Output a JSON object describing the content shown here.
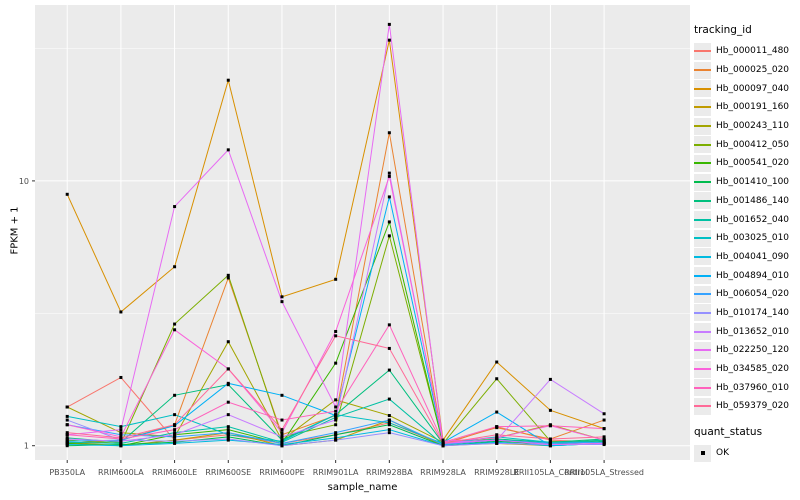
{
  "chart_data": {
    "type": "line",
    "title": "",
    "xlabel": "sample_name",
    "ylabel": "FPKM + 1",
    "yscale": "log10",
    "ylim": [
      0.88,
      46
    ],
    "y_major_ticks": [
      1,
      10
    ],
    "y_minor_ticks": [
      3.162,
      31.62
    ],
    "grid": "on",
    "legend_position": "right",
    "point_shape": "black-square",
    "x_categories": [
      "PB350LA",
      "RRIM600LA",
      "RRIM600LE",
      "RRIM600SE",
      "RRIM600PE",
      "RRIM901LA",
      "RRIM928BA",
      "RRIM928LA",
      "RRIM928LE",
      "RRII105LA_Control",
      "RRII105LA_Stressed"
    ],
    "series": [
      {
        "name": "Hb_000011_480",
        "color": "#F8766D",
        "values": [
          1.4,
          1.81,
          1.05,
          1.1,
          1.02,
          1.1,
          1.22,
          1.01,
          1.18,
          1.05,
          1.03
        ]
      },
      {
        "name": "Hb_000025_020",
        "color": "#EA8331",
        "values": [
          1.02,
          1.05,
          1.2,
          4.3,
          1.1,
          1.3,
          15.2,
          1.02,
          1.17,
          1.06,
          1.25
        ]
      },
      {
        "name": "Hb_000097_040",
        "color": "#D89000",
        "values": [
          8.9,
          3.2,
          4.74,
          24.0,
          3.65,
          4.25,
          34.0,
          1.05,
          2.07,
          1.36,
          1.16
        ]
      },
      {
        "name": "Hb_000191_160",
        "color": "#C09B00",
        "values": [
          1.03,
          1.0,
          1.05,
          1.12,
          1.0,
          1.05,
          1.25,
          1.0,
          1.02,
          1.0,
          1.02
        ]
      },
      {
        "name": "Hb_000243_110",
        "color": "#A3A500",
        "values": [
          1.4,
          1.12,
          1.08,
          2.47,
          1.05,
          1.49,
          1.3,
          1.03,
          1.07,
          1.2,
          1.05
        ]
      },
      {
        "name": "Hb_000412_050",
        "color": "#7CAE00",
        "values": [
          1.05,
          1.02,
          2.88,
          4.4,
          1.08,
          1.2,
          6.2,
          1.02,
          1.79,
          1.04,
          1.02
        ]
      },
      {
        "name": "Hb_000541_020",
        "color": "#39B600",
        "values": [
          1.02,
          1.0,
          1.1,
          1.15,
          1.02,
          2.05,
          7.0,
          1.01,
          1.05,
          1.02,
          1.05
        ]
      },
      {
        "name": "Hb_001410_100",
        "color": "#00BB4E",
        "values": [
          1.0,
          1.01,
          1.03,
          1.08,
          1.0,
          1.1,
          1.2,
          1.0,
          1.04,
          1.01,
          1.04
        ]
      },
      {
        "name": "Hb_001486_140",
        "color": "#00BF7D",
        "values": [
          1.07,
          1.03,
          1.55,
          1.7,
          1.05,
          1.31,
          1.93,
          1.02,
          1.06,
          1.03,
          1.06
        ]
      },
      {
        "name": "Hb_001652_040",
        "color": "#00C1A3",
        "values": [
          1.03,
          1.02,
          1.12,
          1.18,
          1.03,
          1.28,
          1.5,
          1.01,
          1.05,
          1.02,
          1.05
        ]
      },
      {
        "name": "Hb_003025_010",
        "color": "#00BFC4",
        "values": [
          1.29,
          1.18,
          1.31,
          1.1,
          1.04,
          1.31,
          1.22,
          1.02,
          1.08,
          1.03,
          1.03
        ]
      },
      {
        "name": "Hb_004041_090",
        "color": "#00BAE0",
        "values": [
          1.01,
          1.0,
          1.02,
          1.05,
          1.01,
          1.07,
          1.15,
          1.0,
          1.03,
          1.0,
          1.02
        ]
      },
      {
        "name": "Hb_004894_010",
        "color": "#00B0F6",
        "values": [
          1.04,
          1.05,
          1.19,
          1.72,
          1.55,
          1.3,
          8.7,
          1.03,
          1.34,
          1.0,
          1.02
        ]
      },
      {
        "name": "Hb_006054_020",
        "color": "#35A2FF",
        "values": [
          1.2,
          1.1,
          1.08,
          1.12,
          1.02,
          1.12,
          1.25,
          1.01,
          1.05,
          1.02,
          1.03
        ]
      },
      {
        "name": "Hb_010174_140",
        "color": "#9590FF",
        "values": [
          1.25,
          1.05,
          1.04,
          1.06,
          1.0,
          1.05,
          1.12,
          1.0,
          1.02,
          1.01,
          1.01
        ]
      },
      {
        "name": "Hb_013652_010",
        "color": "#C77CFF",
        "values": [
          1.06,
          1.04,
          1.1,
          1.31,
          1.08,
          1.25,
          10.7,
          1.03,
          1.05,
          1.78,
          1.32
        ]
      },
      {
        "name": "Hb_022250_120",
        "color": "#E76BF3",
        "values": [
          1.1,
          1.15,
          8.0,
          13.1,
          3.5,
          1.4,
          39.0,
          1.02,
          1.05,
          1.01,
          1.02
        ]
      },
      {
        "name": "Hb_034585_020",
        "color": "#FA62DB",
        "values": [
          1.2,
          1.08,
          2.74,
          1.95,
          1.12,
          2.7,
          10.4,
          1.04,
          1.07,
          1.19,
          1.05
        ]
      },
      {
        "name": "Hb_037960_010",
        "color": "#FF62BC",
        "values": [
          1.1,
          1.06,
          1.15,
          1.46,
          1.25,
          1.35,
          2.86,
          1.03,
          1.18,
          1.19,
          1.16
        ]
      },
      {
        "name": "Hb_059379_020",
        "color": "#FF6A98",
        "values": [
          1.12,
          1.07,
          1.2,
          1.95,
          1.15,
          2.6,
          2.33,
          1.02,
          1.1,
          1.06,
          1.08
        ]
      }
    ],
    "legend": {
      "tracking_title": "tracking_id",
      "quant_title": "quant_status",
      "ok_label": "OK"
    },
    "colors": {
      "panel_bg": "#EBEBEB",
      "grid": "#FFFFFF",
      "point": "#000000",
      "axis_text": "#4D4D4D",
      "axis_title": "#000000"
    }
  }
}
